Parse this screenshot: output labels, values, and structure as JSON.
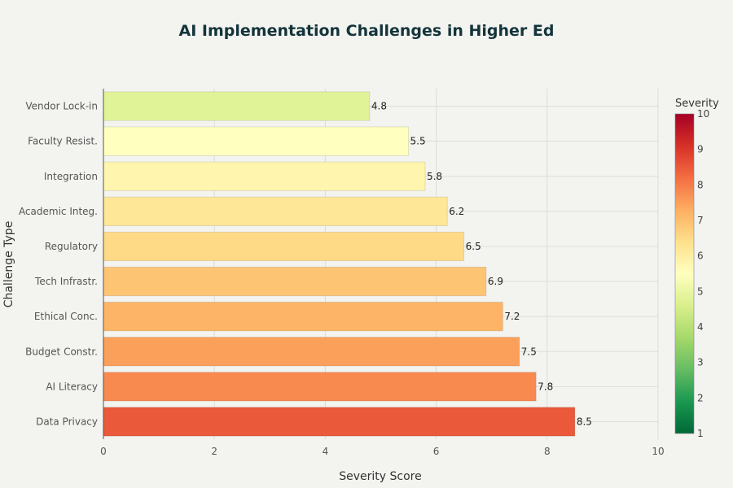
{
  "chart_data": {
    "type": "bar",
    "orientation": "horizontal",
    "title": "AI Implementation Challenges in Higher Ed",
    "xlabel": "Severity Score",
    "ylabel": "Challenge Type",
    "xlim": [
      0,
      10
    ],
    "x_ticks": [
      0,
      2,
      4,
      6,
      8,
      10
    ],
    "categories": [
      "Vendor Lock-in",
      "Faculty Resist.",
      "Integration",
      "Academic Integ.",
      "Regulatory",
      "Tech Infrastr.",
      "Ethical Conc.",
      "Budget Constr.",
      "AI Literacy",
      "Data Privacy"
    ],
    "values": [
      4.8,
      5.5,
      5.8,
      6.2,
      6.5,
      6.9,
      7.2,
      7.5,
      7.8,
      8.5
    ],
    "value_labels": [
      "4.8",
      "5.5",
      "5.8",
      "6.2",
      "6.5",
      "6.9",
      "7.2",
      "7.5",
      "7.8",
      "8.5"
    ],
    "grid": true,
    "colorbar": {
      "title": "Severity",
      "range": [
        1,
        10
      ],
      "ticks": [
        1,
        2,
        3,
        4,
        5,
        6,
        7,
        8,
        9,
        10
      ],
      "colorscale": [
        "#006837",
        "#1a9850",
        "#66bd63",
        "#a6d96a",
        "#d9ef8b",
        "#ffffbf",
        "#fee08b",
        "#fdae61",
        "#f46d43",
        "#d73027",
        "#a50026"
      ],
      "placement": "right"
    }
  }
}
